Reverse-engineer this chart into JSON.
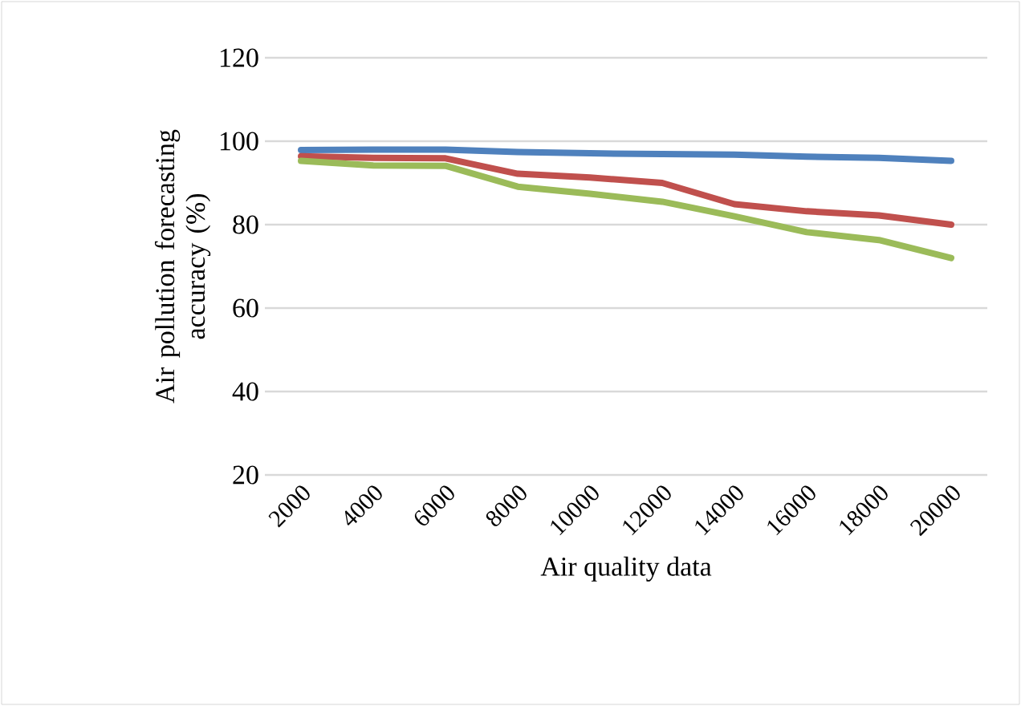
{
  "chart_data": {
    "type": "line",
    "xlabel": "Air quality data",
    "ylabel": "Air pollution forecasting accuracy (%)",
    "categories": [
      "2000",
      "4000",
      "6000",
      "8000",
      "10000",
      "12000",
      "14000",
      "16000",
      "18000",
      "20000"
    ],
    "series": [
      {
        "color": "#4f81bd",
        "values": [
          97.9,
          98,
          98,
          97.4,
          97.1,
          96.9,
          96.8,
          96.3,
          96,
          95.3
        ]
      },
      {
        "color": "#c0504d",
        "values": [
          96.4,
          96,
          95.9,
          92.2,
          91.3,
          90,
          84.9,
          83.2,
          82.2,
          80
        ]
      },
      {
        "color": "#9bbb59",
        "values": [
          95.3,
          94.2,
          94.1,
          89.1,
          87.4,
          85.5,
          82,
          78.2,
          76.3,
          72
        ]
      }
    ],
    "ylim": [
      20,
      120
    ],
    "yticks": [
      20,
      40,
      60,
      80,
      100,
      120
    ],
    "grid": "y",
    "marker": "none",
    "line_style": "solid"
  }
}
